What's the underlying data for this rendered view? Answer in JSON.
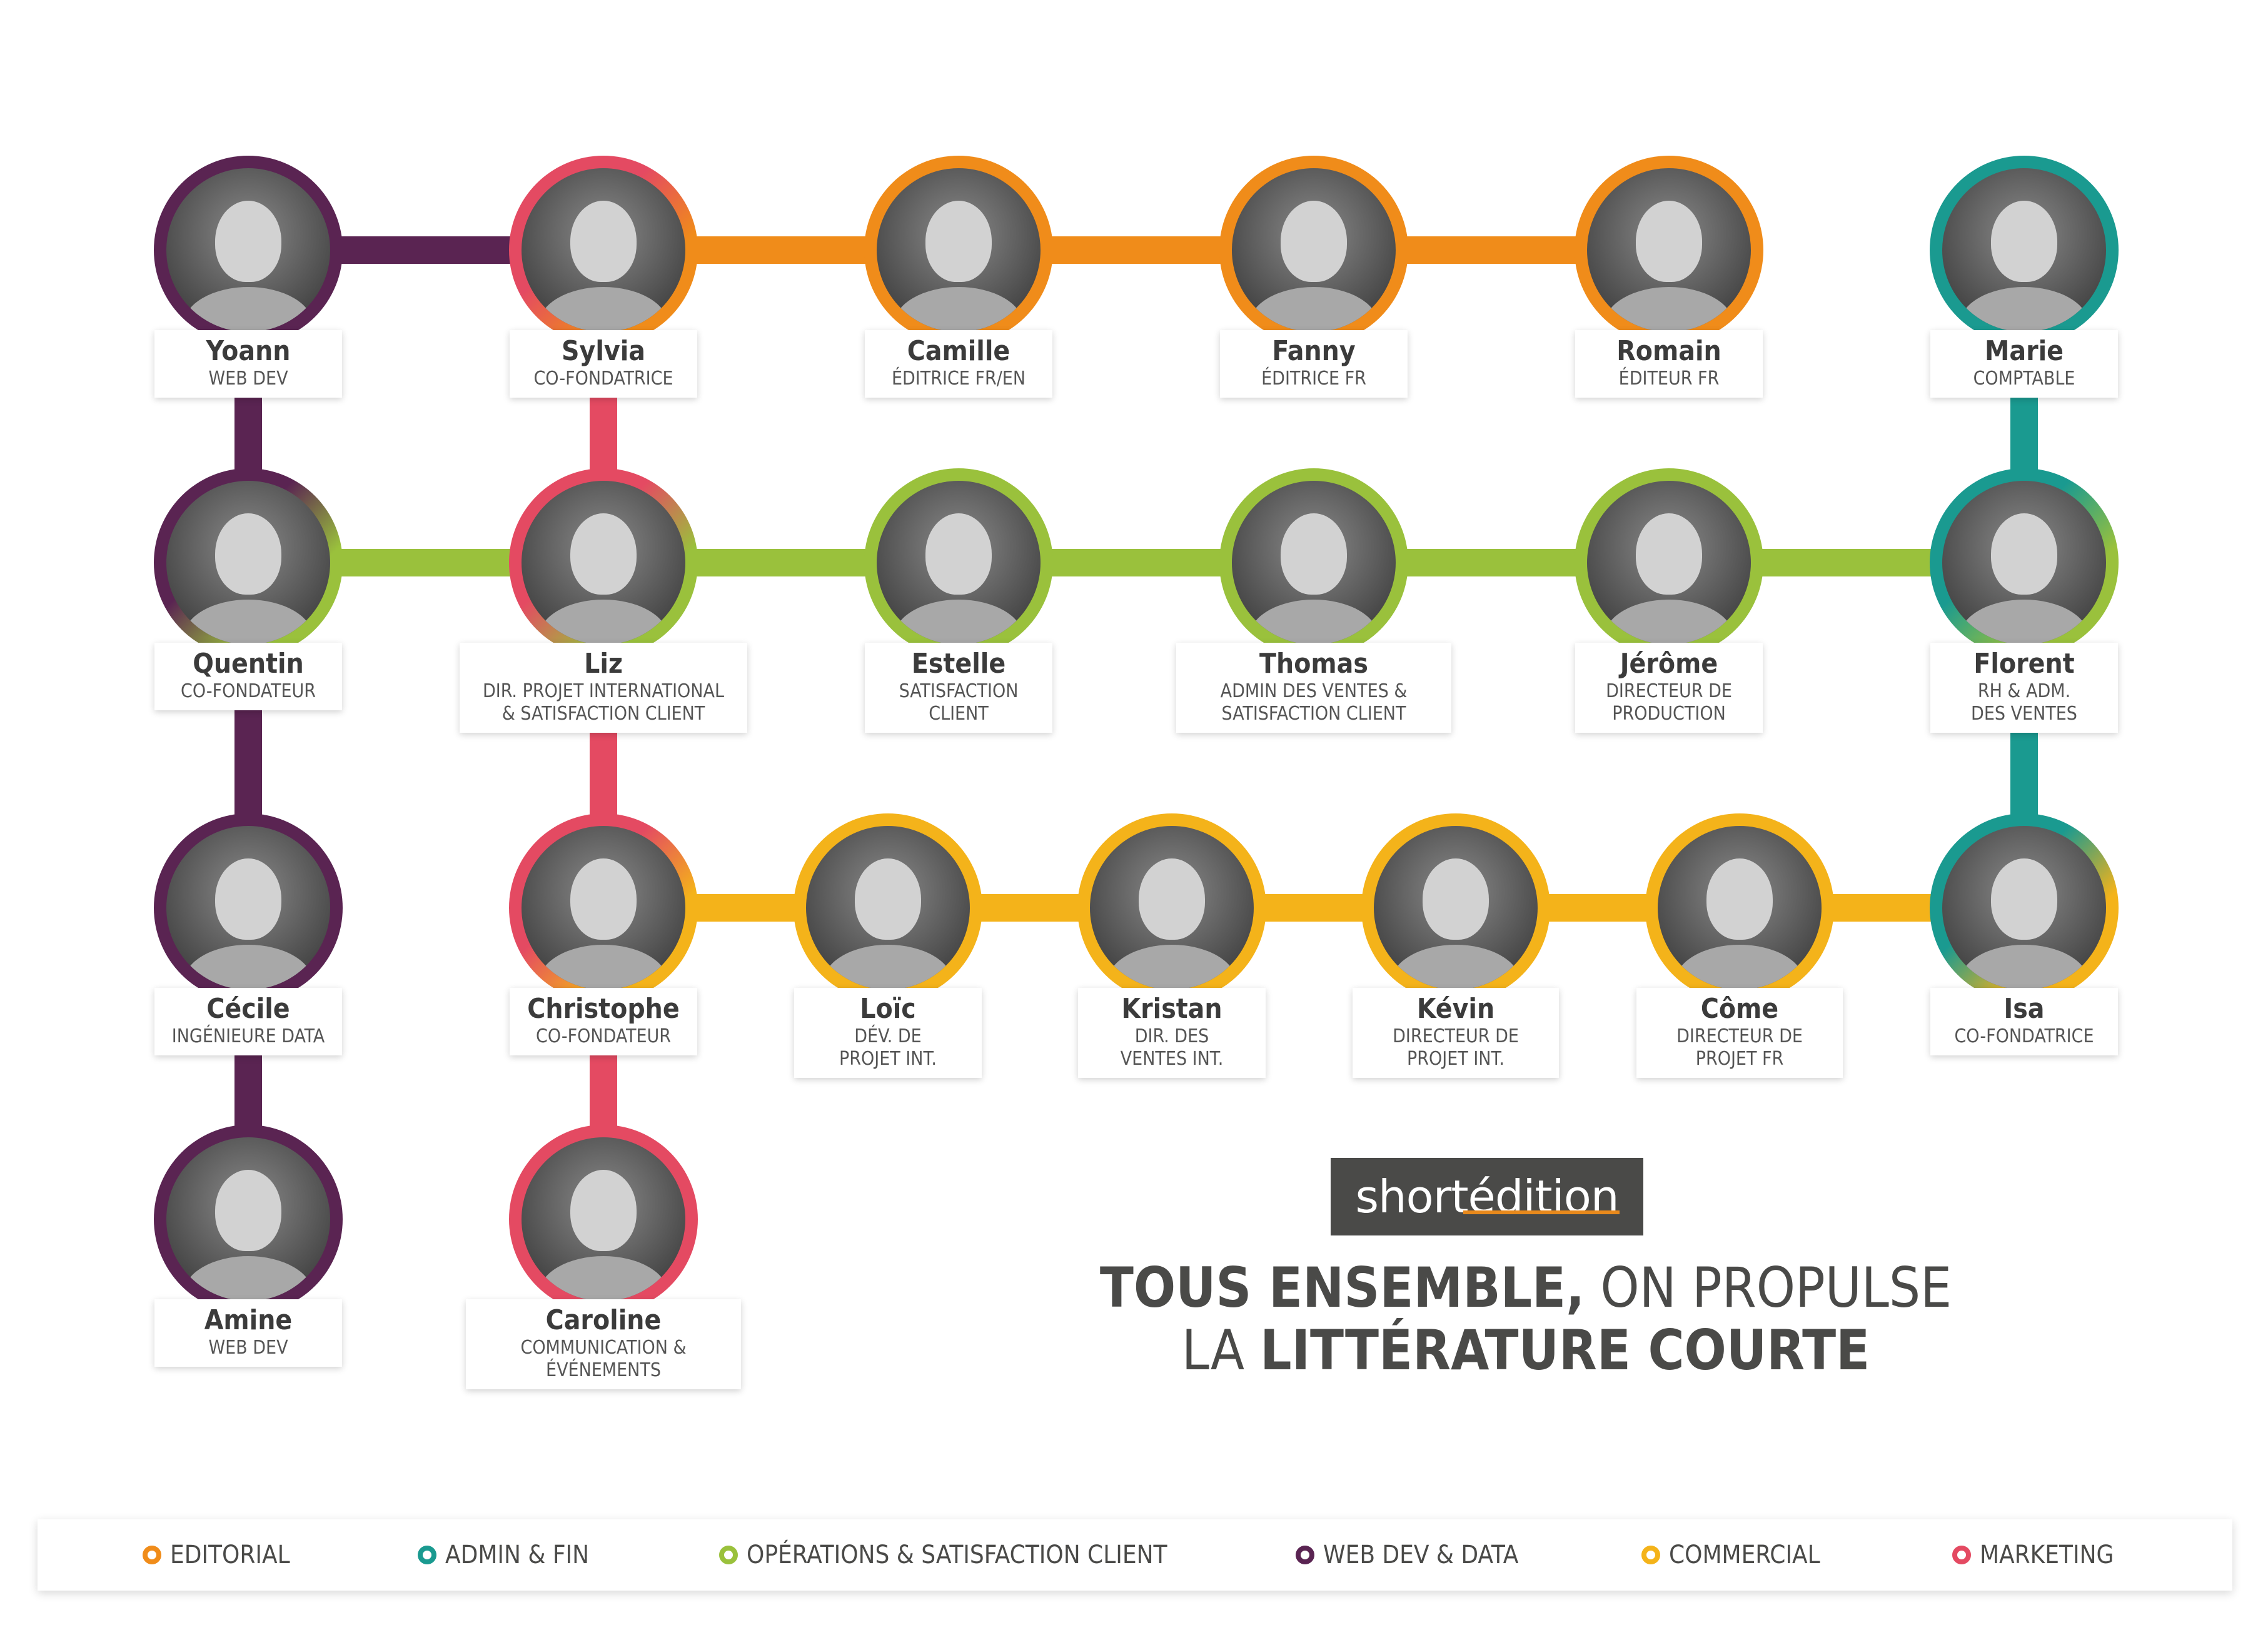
{
  "colors": {
    "editorial": "#f08c1a",
    "admin": "#1a9a90",
    "operations": "#9ac13c",
    "webdev": "#5a2452",
    "commercial": "#f4b31a",
    "marketing": "#e44a62"
  },
  "members": [
    {
      "name": "Yoann",
      "role": "WEB DEV",
      "ring": [
        "webdev"
      ]
    },
    {
      "name": "Sylvia",
      "role": "CO-FONDATRICE",
      "ring": [
        "marketing",
        "editorial"
      ]
    },
    {
      "name": "Camille",
      "role": "ÉDITRICE FR/EN",
      "ring": [
        "editorial"
      ]
    },
    {
      "name": "Fanny",
      "role": "ÉDITRICE FR",
      "ring": [
        "editorial"
      ]
    },
    {
      "name": "Romain",
      "role": "ÉDITEUR FR",
      "ring": [
        "editorial"
      ]
    },
    {
      "name": "Marie",
      "role": "COMPTABLE",
      "ring": [
        "admin"
      ]
    },
    {
      "name": "Quentin",
      "role": "CO-FONDATEUR",
      "ring": [
        "webdev",
        "operations"
      ]
    },
    {
      "name": "Liz",
      "role": "DIR. PROJET INTERNATIONAL\n& SATISFACTION CLIENT",
      "ring": [
        "marketing",
        "operations"
      ]
    },
    {
      "name": "Estelle",
      "role": "SATISFACTION\nCLIENT",
      "ring": [
        "operations"
      ]
    },
    {
      "name": "Thomas",
      "role": "ADMIN DES VENTES &\nSATISFACTION CLIENT",
      "ring": [
        "operations"
      ]
    },
    {
      "name": "Jérôme",
      "role": "DIRECTEUR DE\nPRODUCTION",
      "ring": [
        "operations"
      ]
    },
    {
      "name": "Florent",
      "role": "RH & ADM.\nDES VENTES",
      "ring": [
        "admin",
        "operations"
      ]
    },
    {
      "name": "Cécile",
      "role": "INGÉNIEURE DATA",
      "ring": [
        "webdev"
      ]
    },
    {
      "name": "Christophe",
      "role": "CO-FONDATEUR",
      "ring": [
        "marketing",
        "commercial"
      ]
    },
    {
      "name": "Loïc",
      "role": "DÉV. DE\nPROJET INT.",
      "ring": [
        "commercial"
      ]
    },
    {
      "name": "Kristan",
      "role": "DIR. DES\nVENTES INT.",
      "ring": [
        "commercial"
      ]
    },
    {
      "name": "Kévin",
      "role": "DIRECTEUR DE\nPROJET INT.",
      "ring": [
        "commercial"
      ]
    },
    {
      "name": "Côme",
      "role": "DIRECTEUR DE\nPROJET FR",
      "ring": [
        "commercial"
      ]
    },
    {
      "name": "Isa",
      "role": "CO-FONDATRICE",
      "ring": [
        "admin",
        "commercial"
      ]
    },
    {
      "name": "Amine",
      "role": "WEB DEV",
      "ring": [
        "webdev"
      ]
    },
    {
      "name": "Caroline",
      "role": "COMMUNICATION &\nÉVÉNEMENTS",
      "ring": [
        "marketing"
      ]
    }
  ],
  "links": [
    {
      "from": "Yoann",
      "to": "Sylvia",
      "color": "webdev"
    },
    {
      "from": "Sylvia",
      "to": "Camille",
      "color": "editorial"
    },
    {
      "from": "Camille",
      "to": "Fanny",
      "color": "editorial"
    },
    {
      "from": "Fanny",
      "to": "Romain",
      "color": "editorial"
    },
    {
      "from": "Marie",
      "to": "Florent",
      "color": "admin"
    },
    {
      "from": "Yoann",
      "to": "Quentin",
      "color": "webdev"
    },
    {
      "from": "Sylvia",
      "to": "Liz",
      "color": "marketing"
    },
    {
      "from": "Quentin",
      "to": "Liz",
      "color": "operations"
    },
    {
      "from": "Liz",
      "to": "Estelle",
      "color": "operations"
    },
    {
      "from": "Estelle",
      "to": "Thomas",
      "color": "operations"
    },
    {
      "from": "Thomas",
      "to": "Jérôme",
      "color": "operations"
    },
    {
      "from": "Jérôme",
      "to": "Florent",
      "color": "operations"
    },
    {
      "from": "Florent",
      "to": "Isa",
      "color": "admin"
    },
    {
      "from": "Quentin",
      "to": "Cécile",
      "color": "webdev"
    },
    {
      "from": "Liz",
      "to": "Christophe",
      "color": "marketing"
    },
    {
      "from": "Christophe",
      "to": "Loïc",
      "color": "commercial"
    },
    {
      "from": "Loïc",
      "to": "Kristan",
      "color": "commercial"
    },
    {
      "from": "Kristan",
      "to": "Kévin",
      "color": "commercial"
    },
    {
      "from": "Kévin",
      "to": "Côme",
      "color": "commercial"
    },
    {
      "from": "Côme",
      "to": "Isa",
      "color": "commercial"
    },
    {
      "from": "Cécile",
      "to": "Amine",
      "color": "webdev"
    },
    {
      "from": "Christophe",
      "to": "Caroline",
      "color": "marketing"
    }
  ],
  "logo": {
    "text": "shortédition"
  },
  "tagline": {
    "line1_bold": "TOUS ENSEMBLE,",
    "line1_rest": " ON PROPULSE",
    "line2_plain": "LA ",
    "line2_bold": "LITTÉRATURE COURTE"
  },
  "legend": [
    {
      "label": "EDITORIAL",
      "color": "editorial"
    },
    {
      "label": "ADMIN & FIN",
      "color": "admin"
    },
    {
      "label": "OPÉRATIONS & SATISFACTION CLIENT",
      "color": "operations"
    },
    {
      "label": "WEB DEV & DATA",
      "color": "webdev"
    },
    {
      "label": "COMMERCIAL",
      "color": "commercial"
    },
    {
      "label": "MARKETING",
      "color": "marketing"
    }
  ]
}
